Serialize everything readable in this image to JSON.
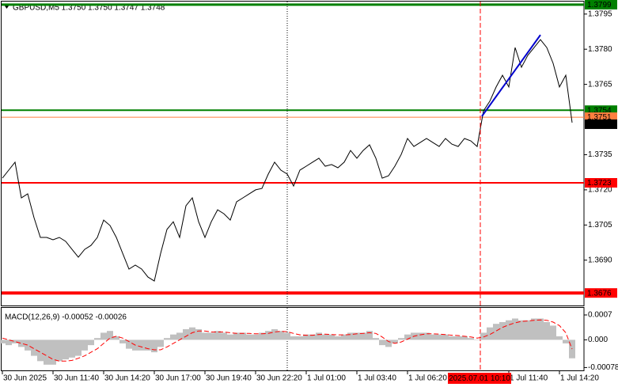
{
  "chart_data": [
    {
      "type": "line",
      "title": "GBPUSD,M5  1.3750 1.3750 1.3747 1.3748",
      "categories": [
        "30 Jun 2025",
        null,
        null,
        null,
        null,
        null,
        null,
        null,
        "30 Jun 11:40",
        null,
        null,
        null,
        null,
        null,
        null,
        null,
        "30 Jun 14:20",
        null,
        null,
        null,
        null,
        null,
        null,
        null,
        "30 Jun 17:00",
        null,
        null,
        null,
        null,
        null,
        null,
        null,
        "30 Jun 19:40",
        null,
        null,
        null,
        null,
        null,
        null,
        null,
        "30 Jun 22:20",
        null,
        null,
        null,
        null,
        null,
        null,
        null,
        "1 Jul 01:00",
        null,
        null,
        null,
        null,
        null,
        null,
        null,
        "1 Jul 03:40",
        null,
        null,
        null,
        null,
        null,
        null,
        null,
        "1 Jul 06:20",
        null,
        null,
        null,
        null,
        null,
        null,
        null,
        null,
        null,
        null,
        null,
        null,
        null,
        null,
        null,
        "1 Jul 11:40",
        null,
        null,
        null,
        null,
        null,
        null,
        null,
        "1 Jul 14:20",
        null,
        null
      ],
      "values": [
        1.3725,
        1.37284,
        1.37318,
        1.37166,
        1.37183,
        1.37081,
        1.36997,
        1.36997,
        1.36987,
        1.36997,
        1.3698,
        1.36946,
        1.36913,
        1.36946,
        1.36963,
        1.36997,
        1.37071,
        1.37048,
        1.36997,
        1.36929,
        1.36862,
        1.36879,
        1.36862,
        1.36828,
        1.36811,
        1.36929,
        1.37031,
        1.37064,
        1.36997,
        1.37132,
        1.37166,
        1.37064,
        1.36997,
        1.37064,
        1.37115,
        1.37098,
        1.37071,
        1.37149,
        1.37166,
        1.37183,
        1.372,
        1.37206,
        1.37267,
        1.37318,
        1.37284,
        1.37267,
        1.37216,
        1.37284,
        1.37301,
        1.37318,
        1.37335,
        1.37301,
        1.37308,
        1.37294,
        1.37318,
        1.37368,
        1.37335,
        1.37368,
        1.37392,
        1.37335,
        1.3725,
        1.3726,
        1.37301,
        1.37351,
        1.37419,
        1.37385,
        1.37402,
        1.37419,
        1.37402,
        1.37385,
        1.37419,
        1.37395,
        1.37385,
        1.37419,
        1.37409,
        1.37385,
        1.37537,
        1.37578,
        1.37639,
        1.37689,
        1.37639,
        1.37807,
        1.37723,
        1.37774,
        1.37807,
        1.37841,
        1.37807,
        1.3774,
        1.37639,
        1.37689,
        1.37487
      ],
      "color": "#000000",
      "ylim": [
        1.3671,
        1.3801
      ],
      "yticks": [
        1.3795,
        {
          "value": 1.378,
          "label": "1.3780"
        },
        1.3765,
        1.3735,
        {
          "value": 1.372,
          "label": "1.3720"
        },
        1.3705,
        {
          "value": 1.369,
          "label": "1.3690"
        }
      ],
      "hlines": [
        {
          "value": 1.3799,
          "color": "#008000",
          "width": 3
        },
        {
          "value": 1.3754,
          "color": "#008000",
          "width": 2
        },
        {
          "value": 1.3751,
          "color": "#ff7f3f",
          "width": 1
        },
        {
          "value": 1.3723,
          "color": "#ff0000",
          "width": 2
        },
        {
          "value": 1.3676,
          "color": "#ff0000",
          "width": 4
        }
      ],
      "last_price": 1.3748,
      "trendline": {
        "x": [
          75.75,
          85
        ],
        "values": [
          1.37514,
          1.37861
        ],
        "color": "#0000cd"
      },
      "vlines": [
        {
          "x": 45,
          "color": "#000000",
          "style": "dotted"
        },
        {
          "x": 75.5,
          "color": "#ff0000",
          "style": "dashed",
          "label": "2025.07.01 10:10"
        }
      ]
    },
    {
      "type": "bar",
      "title": "MACD(12,26,9) -0.00052 -0.00026",
      "ylim": [
        -0.00086,
        0.0009
      ],
      "yticks": [
        0.0007,
        {
          "value": 0,
          "label": "0.000"
        },
        -0.00078
      ],
      "series": [
        {
          "type": "bar",
          "color": "#c0c0c0",
          "values": [
            -0.0001,
            -0.00015,
            -0.0001,
            -0.0002,
            -0.0003,
            -0.00045,
            -0.0006,
            -0.0007,
            -0.0007,
            -0.0006,
            -0.00055,
            -0.0005,
            -0.00045,
            -0.0003,
            -0.00015,
            5e-05,
            0.0002,
            0.00025,
            0.0001,
            -0.0001,
            -0.00025,
            -0.0003,
            -0.0003,
            -0.0003,
            -0.00035,
            -0.0002,
            5e-05,
            0.00015,
            0.0002,
            0.0003,
            0.00035,
            0.0003,
            0.0002,
            0.0002,
            0.00025,
            0.0002,
            0.00015,
            0.0002,
            0.0002,
            0.00015,
            0.00015,
            0.0002,
            0.00025,
            0.0003,
            0.00025,
            0.0002,
            0.0001,
            0.0001,
            0.00015,
            0.00015,
            0.0002,
            0.00015,
            0.00015,
            0.0001,
            0.00015,
            0.0002,
            0.0002,
            0.0002,
            0.00025,
            5e-05,
            -0.00015,
            -0.0002,
            -0.0001,
            5e-05,
            0.00015,
            0.0002,
            0.0002,
            0.0002,
            0.00015,
            0.00015,
            0.00015,
            0.0001,
            0.0001,
            0.0001,
            5e-05,
            0,
            0.0002,
            0.00035,
            0.00045,
            0.0005,
            0.00055,
            0.0006,
            0.00055,
            0.00055,
            0.0006,
            0.0006,
            0.0005,
            0.0004,
            0.0001,
            -0.0001,
            -0.00052
          ]
        },
        {
          "type": "line",
          "color": "#ff0000",
          "style": "dashed",
          "values": [
            5e-05,
            0,
            -5e-05,
            -0.0001,
            -0.00015,
            -0.00025,
            -0.00035,
            -0.00045,
            -0.00055,
            -0.0006,
            -0.0006,
            -0.00058,
            -0.00052,
            -0.00045,
            -0.00035,
            -0.00025,
            -0.0001,
            5e-05,
            0.0001,
            5e-05,
            -5e-05,
            -0.00015,
            -0.0002,
            -0.00025,
            -0.00028,
            -0.00028,
            -0.0002,
            -0.0001,
            0,
            0.0001,
            0.0002,
            0.00025,
            0.00025,
            0.00022,
            0.00022,
            0.00022,
            0.0002,
            0.00018,
            0.00018,
            0.00018,
            0.00017,
            0.00017,
            0.00018,
            0.00022,
            0.00024,
            0.00023,
            0.00018,
            0.00014,
            0.00013,
            0.00013,
            0.00015,
            0.00016,
            0.00015,
            0.00014,
            0.00014,
            0.00015,
            0.00017,
            0.00018,
            0.0002,
            0.00018,
            8e-05,
            -5e-05,
            -0.0001,
            -6e-05,
            2e-05,
            0.0001,
            0.00014,
            0.00017,
            0.00017,
            0.00016,
            0.00015,
            0.00013,
            0.00012,
            0.0001,
            8e-05,
            5e-05,
            8e-05,
            0.00015,
            0.00025,
            0.00035,
            0.00042,
            0.00048,
            0.00052,
            0.00053,
            0.00055,
            0.00056,
            0.00055,
            0.0005,
            0.0004,
            0.0002,
            -0.00026
          ]
        }
      ]
    }
  ]
}
